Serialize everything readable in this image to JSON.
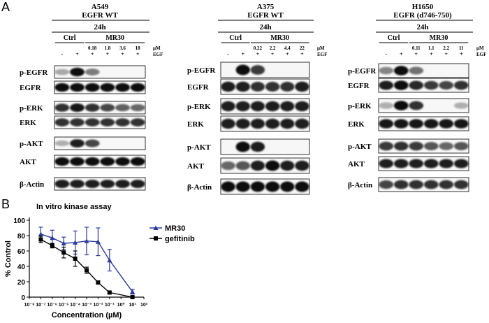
{
  "panel_labels": {
    "a": "A",
    "b": "B"
  },
  "western_blots": {
    "treatment_header": {
      "time": "24h",
      "ctrl": "Ctrl",
      "drug": "MR30",
      "conc_unit": "µM",
      "egf_label": "EGF",
      "minus": "-",
      "plus": "+"
    },
    "egf_signs": [
      "-",
      "+",
      "+",
      "+",
      "+",
      "+"
    ],
    "panels": [
      {
        "cell_line": "A549",
        "genotype": "EGFR WT",
        "concentrations": [
          "0.18",
          "1.8",
          "3.6",
          "18"
        ],
        "blots": [
          "p-EGFR",
          "EGFR",
          "p-ERK",
          "ERK",
          "p-AKT",
          "AKT",
          "β-Actin"
        ]
      },
      {
        "cell_line": "A375",
        "genotype": "EGFR WT",
        "concentrations": [
          "0.22",
          "2.2",
          "4.4",
          "22"
        ],
        "blots": [
          "p-EGFR",
          "EGFR",
          "p-ERK",
          "ERK",
          "p-AKT",
          "AKT",
          "β-Actin"
        ]
      },
      {
        "cell_line": "H1650",
        "genotype": "EGFR (d746-750)",
        "concentrations": [
          "0.11",
          "1.1",
          "2.2",
          "11"
        ],
        "blots": [
          "p-EGFR",
          "EGFR",
          "p-ERK",
          "ERK",
          "p-AKT",
          "AKT",
          "β-Actin"
        ]
      }
    ]
  },
  "chart_data": {
    "type": "line",
    "title": "In vitro kinase assay",
    "xlabel": "Concentration (µM)",
    "ylabel": "% Control",
    "x_scale": "log",
    "xlim": [
      1e-08,
      100
    ],
    "ylim": [
      0,
      100
    ],
    "x_tick_labels": [
      "10⁻⁸",
      "10⁻⁷",
      "10⁻⁶",
      "10⁻⁵",
      "10⁻⁴",
      "10⁻³",
      "10⁻²",
      "10⁻¹",
      "10⁰",
      "10¹",
      "10²"
    ],
    "y_ticks": [
      0,
      20,
      40,
      60,
      80,
      100
    ],
    "legend_position": "top-right",
    "series": [
      {
        "name": "MR30",
        "color": "#2b3a9c",
        "marker": "triangle",
        "x": [
          1e-07,
          1e-06,
          1e-05,
          0.0001,
          0.001,
          0.01,
          0.1,
          10
        ],
        "y": [
          82,
          77,
          70,
          71,
          73,
          72,
          48,
          7
        ],
        "err": [
          9,
          10,
          8,
          15,
          18,
          18,
          14,
          3
        ]
      },
      {
        "name": "gefitinib",
        "color": "#000000",
        "marker": "square",
        "x": [
          1e-07,
          1e-06,
          1e-05,
          0.0001,
          0.001,
          0.01,
          0.1,
          10
        ],
        "y": [
          75,
          67,
          58,
          50,
          35,
          19,
          6,
          0
        ],
        "err": [
          4,
          3,
          7,
          10,
          4,
          2,
          1,
          1
        ]
      }
    ]
  }
}
